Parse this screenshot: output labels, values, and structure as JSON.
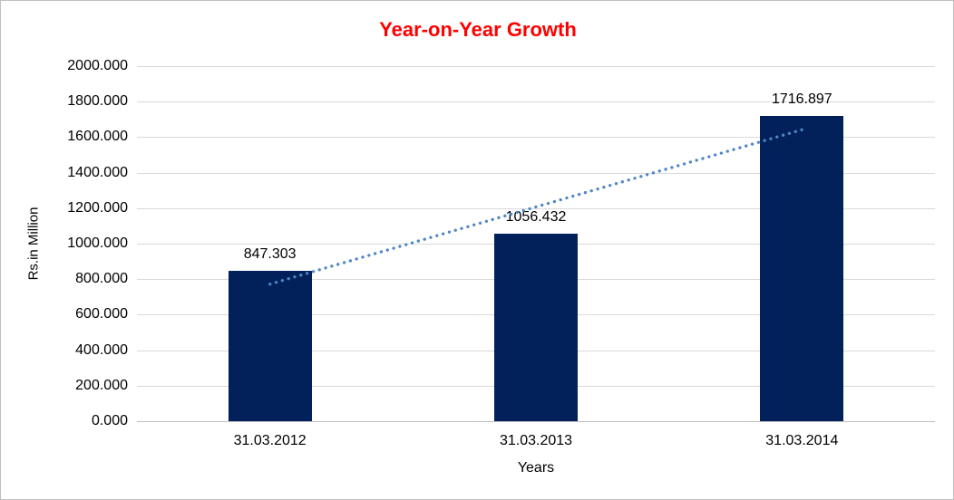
{
  "chart_data": {
    "type": "bar",
    "title": "Year-on-Year Growth",
    "title_color": "#FF0000",
    "xlabel": "Years",
    "ylabel": "Rs.in Million",
    "categories": [
      "31.03.2012",
      "31.03.2013",
      "31.03.2014"
    ],
    "values": [
      847.303,
      1056.432,
      1716.897
    ],
    "data_labels": [
      "847.303",
      "1056.432",
      "1716.897"
    ],
    "ylim": [
      0,
      2000
    ],
    "ytick_values": [
      0,
      200,
      400,
      600,
      800,
      1000,
      1200,
      1400,
      1600,
      1800,
      2000
    ],
    "ytick_labels": [
      "0.000",
      "200.000",
      "400.000",
      "600.000",
      "800.000",
      "1000.000",
      "1200.000",
      "1400.000",
      "1600.000",
      "1800.000",
      "2000.000"
    ],
    "grid": true,
    "legend": "none",
    "bar_color": "#02215B",
    "gridline_color": "#D9D9D9",
    "axis_line_color": "#BFBFBF",
    "trendline": {
      "type": "linear",
      "style": "dotted",
      "color": "#4E86C8",
      "start_value": 772.1,
      "end_value": 1641.7,
      "spans": "first bar center to last bar center"
    }
  }
}
